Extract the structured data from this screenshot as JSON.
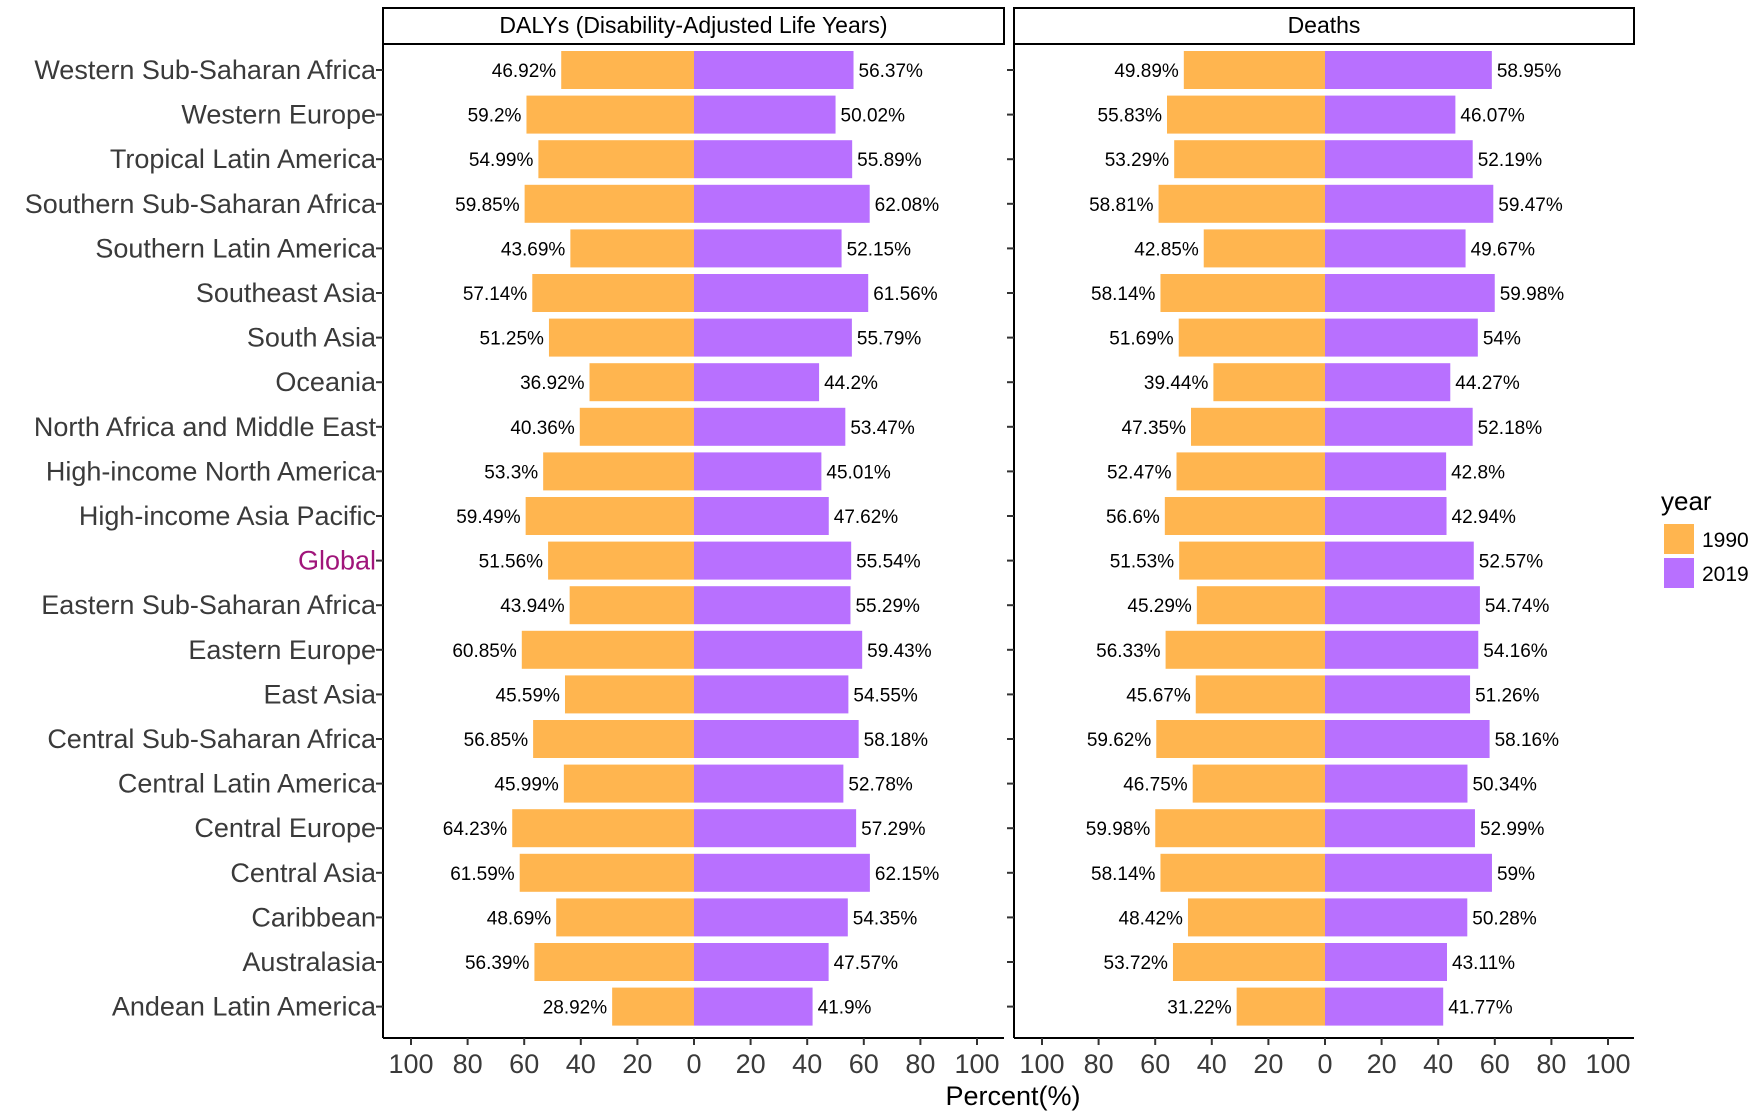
{
  "chart_data": {
    "type": "bar",
    "orientation": "horizontal",
    "xlabel": "Percent(%)",
    "x_ticks": [
      "100",
      "80",
      "60",
      "40",
      "20",
      "0",
      "20",
      "40",
      "60",
      "80",
      "100"
    ],
    "xlim": [
      -100,
      100
    ],
    "grid": false,
    "legend": {
      "title": "year",
      "position": "right",
      "entries": [
        "1990",
        "2019"
      ]
    },
    "colors": {
      "1990": "#FFB54F",
      "2019": "#B870FF"
    },
    "highlight_category": "Global",
    "highlight_color": "#a0157a",
    "categories": [
      "Western Sub-Saharan Africa",
      "Western Europe",
      "Tropical Latin America",
      "Southern Sub-Saharan Africa",
      "Southern Latin America",
      "Southeast Asia",
      "South Asia",
      "Oceania",
      "North Africa and Middle East",
      "High-income North America",
      "High-income Asia Pacific",
      "Global",
      "Eastern Sub-Saharan Africa",
      "Eastern Europe",
      "East Asia",
      "Central Sub-Saharan Africa",
      "Central Latin America",
      "Central Europe",
      "Central Asia",
      "Caribbean",
      "Australasia",
      "Andean Latin America"
    ],
    "panels": [
      {
        "title": "DALYs (Disability-Adjusted Life Years)",
        "series": [
          {
            "name": "1990",
            "values": [
              46.92,
              59.2,
              54.99,
              59.85,
              43.69,
              57.14,
              51.25,
              36.92,
              40.36,
              53.3,
              59.49,
              51.56,
              43.94,
              60.85,
              45.59,
              56.85,
              45.99,
              64.23,
              61.59,
              48.69,
              56.39,
              28.92
            ]
          },
          {
            "name": "2019",
            "values": [
              56.37,
              50.02,
              55.89,
              62.08,
              52.15,
              61.56,
              55.79,
              44.2,
              53.47,
              45.01,
              47.62,
              55.54,
              55.29,
              59.43,
              54.55,
              58.18,
              52.78,
              57.29,
              62.15,
              54.35,
              47.57,
              41.9
            ]
          }
        ]
      },
      {
        "title": "Deaths",
        "series": [
          {
            "name": "1990",
            "values": [
              49.89,
              55.83,
              53.29,
              58.81,
              42.85,
              58.14,
              51.69,
              39.44,
              47.35,
              52.47,
              56.6,
              51.53,
              45.29,
              56.33,
              45.67,
              59.62,
              46.75,
              59.98,
              58.14,
              48.42,
              53.72,
              31.22
            ]
          },
          {
            "name": "2019",
            "values": [
              58.95,
              46.07,
              52.19,
              59.47,
              49.67,
              59.98,
              54,
              44.27,
              52.18,
              42.8,
              42.94,
              52.57,
              54.74,
              54.16,
              51.26,
              58.16,
              50.34,
              52.99,
              59,
              50.28,
              43.11,
              41.77
            ]
          }
        ]
      }
    ]
  }
}
